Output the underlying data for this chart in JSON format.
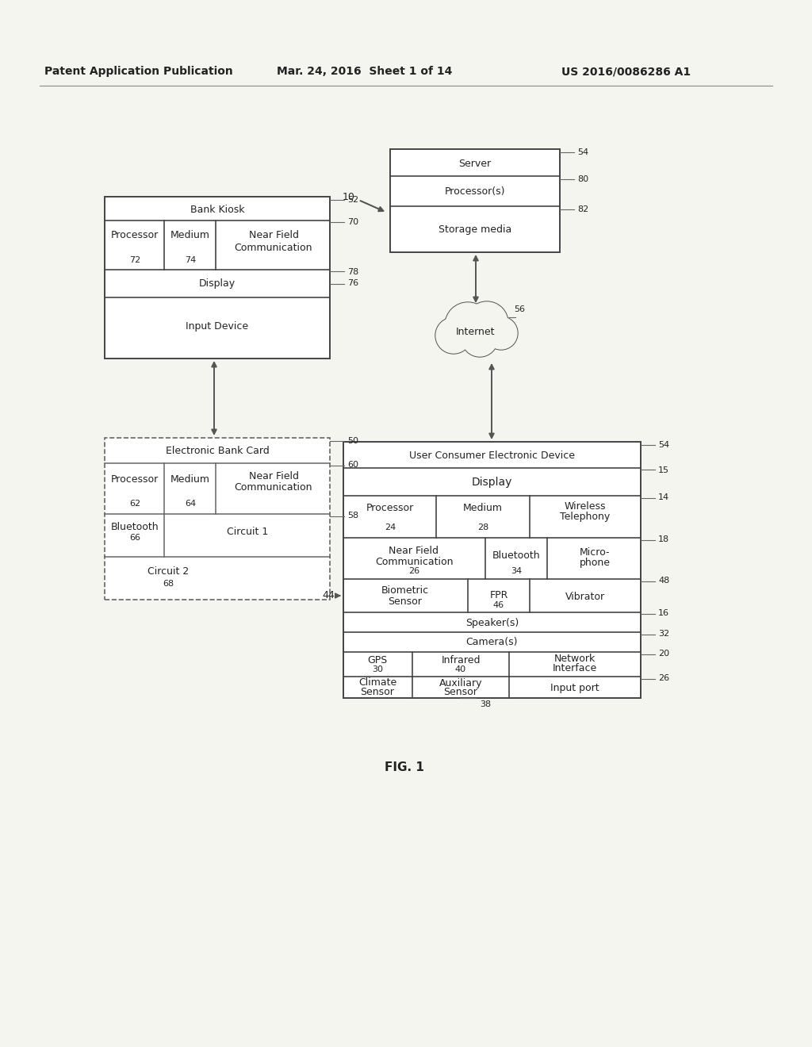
{
  "header_left": "Patent Application Publication",
  "header_mid": "Mar. 24, 2016  Sheet 1 of 14",
  "header_right": "US 2016/0086286 A1",
  "footer_label": "FIG. 1",
  "bg_color": "#f5f5f0",
  "line_color": "#555555",
  "text_color": "#222222"
}
